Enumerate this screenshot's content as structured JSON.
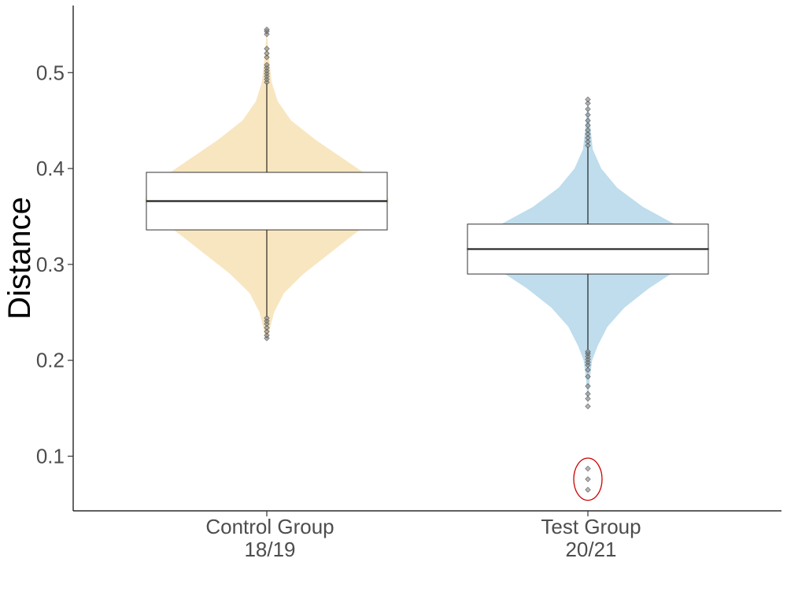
{
  "chart_data": {
    "type": "violin",
    "ylabel": "Distance",
    "xlabel": "",
    "ylim": [
      0.043,
      0.57
    ],
    "yticks": [
      0.1,
      0.2,
      0.3,
      0.4,
      0.5
    ],
    "ytick_labels": [
      "0.1",
      "0.2",
      "0.3",
      "0.4",
      "0.5"
    ],
    "grid": false,
    "legend": "none",
    "groups": [
      {
        "label_lines": [
          "Control Group",
          "18/19"
        ],
        "fill_color": "#F8E6C0",
        "violin_profile": [
          [
            0.223,
            0.01
          ],
          [
            0.235,
            0.03
          ],
          [
            0.25,
            0.06
          ],
          [
            0.27,
            0.14
          ],
          [
            0.29,
            0.3
          ],
          [
            0.31,
            0.5
          ],
          [
            0.33,
            0.7
          ],
          [
            0.345,
            0.86
          ],
          [
            0.36,
            0.97
          ],
          [
            0.366,
            1.0
          ],
          [
            0.375,
            0.98
          ],
          [
            0.39,
            0.86
          ],
          [
            0.41,
            0.63
          ],
          [
            0.43,
            0.4
          ],
          [
            0.45,
            0.2
          ],
          [
            0.47,
            0.09
          ],
          [
            0.49,
            0.04
          ],
          [
            0.52,
            0.015
          ],
          [
            0.545,
            0.0
          ]
        ],
        "box": {
          "q1": 0.336,
          "median": 0.366,
          "q3": 0.396,
          "whisker_low": 0.245,
          "whisker_high": 0.489
        },
        "outliers": [
          0.223,
          0.226,
          0.23,
          0.234,
          0.238,
          0.241,
          0.244,
          0.49,
          0.493,
          0.496,
          0.499,
          0.502,
          0.505,
          0.508,
          0.516,
          0.52,
          0.525,
          0.54,
          0.543,
          0.545
        ]
      },
      {
        "label_lines": [
          "Test Group",
          "20/21"
        ],
        "fill_color": "#BFDDEC",
        "violin_profile": [
          [
            0.151,
            0.0
          ],
          [
            0.18,
            0.015
          ],
          [
            0.2,
            0.035
          ],
          [
            0.215,
            0.08
          ],
          [
            0.235,
            0.16
          ],
          [
            0.255,
            0.3
          ],
          [
            0.275,
            0.5
          ],
          [
            0.295,
            0.74
          ],
          [
            0.305,
            0.9
          ],
          [
            0.316,
            1.0
          ],
          [
            0.325,
            0.94
          ],
          [
            0.34,
            0.74
          ],
          [
            0.36,
            0.45
          ],
          [
            0.38,
            0.24
          ],
          [
            0.4,
            0.11
          ],
          [
            0.42,
            0.04
          ],
          [
            0.45,
            0.015
          ],
          [
            0.472,
            0.0
          ]
        ],
        "box": {
          "q1": 0.29,
          "median": 0.316,
          "q3": 0.342,
          "whisker_low": 0.211,
          "whisker_high": 0.423
        },
        "outliers": [
          0.152,
          0.16,
          0.165,
          0.173,
          0.183,
          0.19,
          0.195,
          0.198,
          0.201,
          0.204,
          0.207,
          0.209,
          0.424,
          0.428,
          0.432,
          0.436,
          0.44,
          0.445,
          0.45,
          0.456,
          0.462,
          0.468,
          0.472,
          0.065,
          0.076,
          0.087
        ],
        "highlight": {
          "center_y": 0.076,
          "radius_y": 0.022,
          "color": "#CC0000"
        }
      }
    ]
  }
}
